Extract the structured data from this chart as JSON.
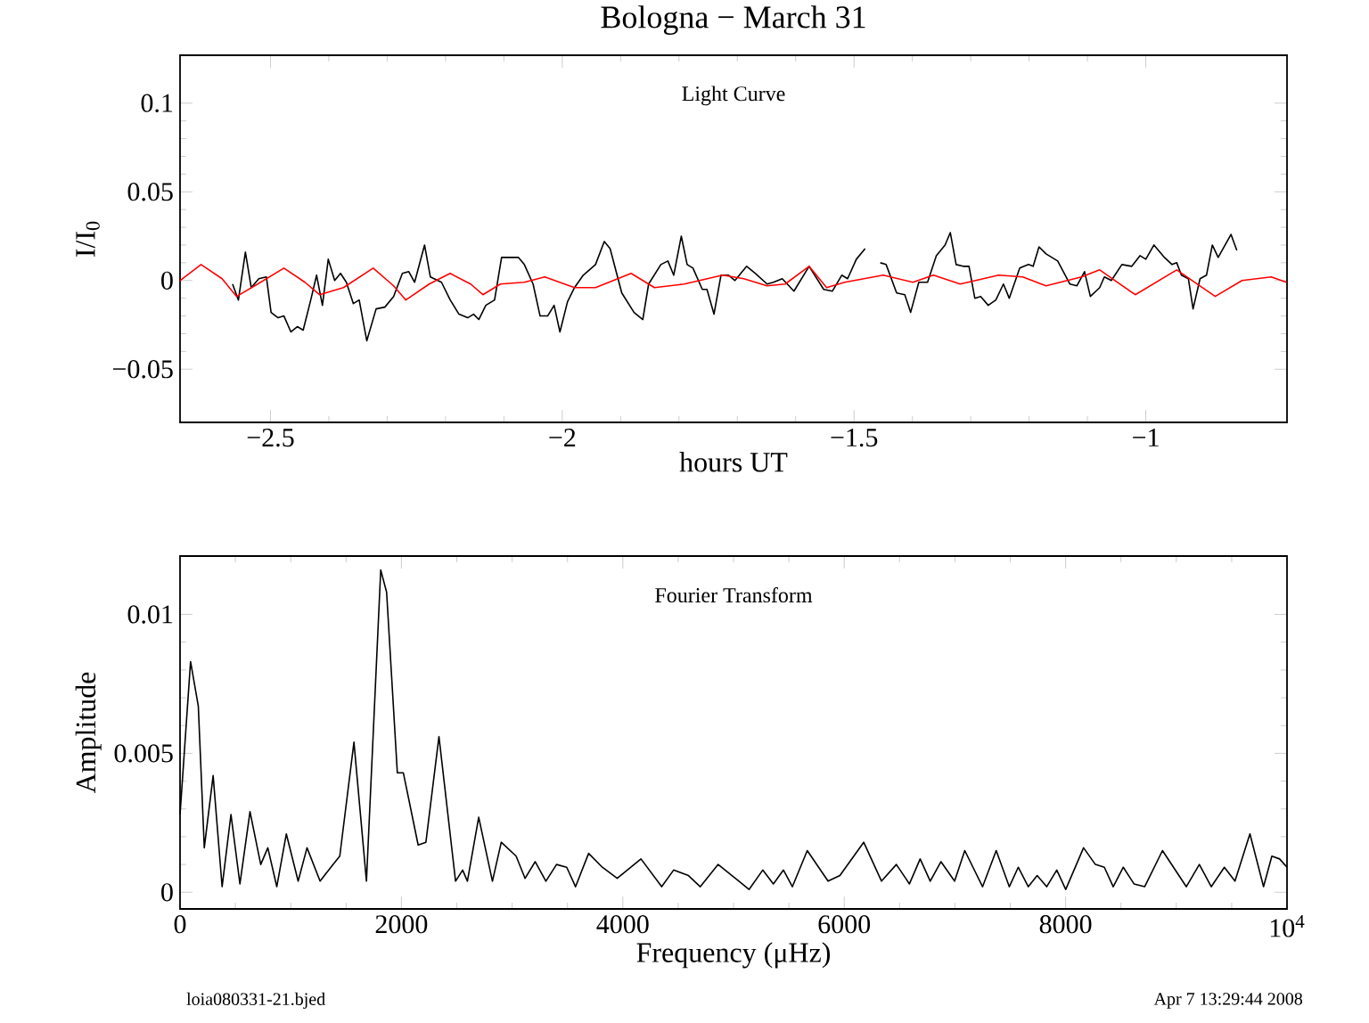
{
  "chart_data": [
    {
      "type": "line",
      "title": "Bologna − March 31",
      "xlabel": "hours UT",
      "ylabel": "I/I$_{0}$",
      "xlim": [
        -2.655,
        -0.758
      ],
      "ylim": [
        -0.08,
        0.127
      ],
      "xticks": [
        {
          "value": -2.5,
          "label": "−2.5"
        },
        {
          "value": -2,
          "label": "−2"
        },
        {
          "value": -1.5,
          "label": "−1.5"
        },
        {
          "value": -1,
          "label": "−1"
        }
      ],
      "yticks": [
        {
          "value": -0.05,
          "label": "−0.05"
        },
        0,
        0.05,
        0.1
      ],
      "annotations": [
        "Light Curve"
      ],
      "series": [
        {
          "color": "#000000",
          "x": [
            -2.565,
            -2.555,
            -2.543,
            -2.533,
            -2.52,
            -2.507,
            -2.499,
            -2.487,
            -2.477,
            -2.465,
            -2.454,
            -2.444,
            -2.431,
            -2.421,
            -2.411,
            -2.401,
            -2.39,
            -2.38,
            -2.37,
            -2.358,
            -2.348,
            -2.335,
            -2.319,
            -2.304,
            -2.289,
            -2.274,
            -2.263,
            -2.253,
            -2.236,
            -2.226,
            -2.207,
            -2.192,
            -2.177,
            -2.162,
            -2.152,
            -2.143,
            -2.131,
            -2.116,
            -2.104,
            -2.091,
            -2.075,
            -2.065,
            -2.05,
            -2.038,
            -2.025,
            -2.014,
            -2.004,
            -1.991,
            -1.979,
            -1.964,
            -1.943,
            -1.928,
            -1.918,
            -1.898,
            -1.877,
            -1.862,
            -1.852,
            -1.831,
            -1.819,
            -1.809,
            -1.796,
            -1.786,
            -1.776,
            -1.76,
            -1.752,
            -1.74,
            -1.728,
            -1.715,
            -1.704,
            -1.684,
            -1.669,
            -1.649,
            -1.638,
            -1.623,
            -1.603,
            -1.577,
            -1.552,
            -1.537,
            -1.521,
            -1.511,
            -1.496,
            -1.481,
            -1.468,
            -1.455,
            -1.445,
            -1.427,
            -1.413,
            -1.403,
            -1.389,
            -1.374,
            -1.359,
            -1.344,
            -1.335,
            -1.325,
            -1.313,
            -1.303,
            -1.293,
            -1.283,
            -1.27,
            -1.257,
            -1.244,
            -1.234,
            -1.216,
            -1.201,
            -1.193,
            -1.183,
            -1.171,
            -1.151,
            -1.13,
            -1.118,
            -1.105,
            -1.095,
            -1.079,
            -1.071,
            -1.059,
            -1.041,
            -1.024,
            -1.01,
            -1.0,
            -0.986,
            -0.968,
            -0.955,
            -0.947,
            -0.939,
            -0.927,
            -0.919,
            -0.907,
            -0.896,
            -0.886,
            -0.876,
            -0.854,
            -0.844
          ],
          "values": [
            -0.002,
            -0.011,
            0.016,
            -0.004,
            0.001,
            0.002,
            -0.018,
            -0.021,
            -0.02,
            -0.029,
            -0.026,
            -0.028,
            -0.011,
            0.003,
            -0.014,
            0.012,
            0.0,
            0.004,
            -0.001,
            -0.013,
            -0.011,
            -0.034,
            -0.016,
            -0.015,
            -0.009,
            0.004,
            0.005,
            -0.001,
            0.02,
            0.002,
            -0.001,
            -0.011,
            -0.019,
            -0.021,
            -0.019,
            -0.022,
            -0.014,
            -0.011,
            0.013,
            0.013,
            0.013,
            0.009,
            -0.002,
            -0.02,
            -0.02,
            -0.014,
            -0.029,
            -0.012,
            -0.004,
            0.003,
            0.009,
            0.022,
            0.018,
            -0.007,
            -0.018,
            -0.022,
            -0.002,
            0.009,
            0.011,
            0.003,
            0.025,
            0.009,
            0.007,
            -0.005,
            -0.005,
            -0.019,
            0.003,
            0.003,
            0.0,
            0.008,
            0.004,
            -0.002,
            -0.001,
            0.001,
            -0.006,
            0.008,
            -0.005,
            -0.006,
            0.003,
            0.001,
            0.012,
            0.018,
            null,
            0.01,
            0.009,
            -0.007,
            -0.008,
            -0.018,
            -0.001,
            -0.001,
            0.014,
            0.02,
            0.027,
            0.009,
            0.008,
            0.008,
            -0.01,
            -0.009,
            -0.014,
            -0.011,
            -0.002,
            -0.01,
            0.007,
            0.009,
            0.008,
            0.019,
            0.015,
            0.011,
            -0.002,
            -0.003,
            0.005,
            -0.009,
            -0.004,
            0.002,
            0.0,
            0.009,
            0.008,
            0.014,
            0.012,
            0.02,
            0.013,
            0.009,
            0.01,
            0.003,
            0.001,
            -0.016,
            0.001,
            0.003,
            0.02,
            0.013,
            0.026,
            0.017
          ]
        },
        {
          "color": "#ff0000",
          "x": [
            -2.655,
            -2.619,
            -2.583,
            -2.558,
            -2.522,
            -2.477,
            -2.441,
            -2.416,
            -2.375,
            -2.324,
            -2.289,
            -2.268,
            -2.228,
            -2.192,
            -2.157,
            -2.136,
            -2.106,
            -2.065,
            -2.03,
            -1.979,
            -1.943,
            -1.882,
            -1.842,
            -1.791,
            -1.725,
            -1.689,
            -1.649,
            -1.618,
            -1.577,
            -1.547,
            -1.516,
            -1.45,
            -1.399,
            -1.364,
            -1.318,
            -1.252,
            -1.211,
            -1.171,
            -1.11,
            -1.079,
            -1.018,
            -0.947,
            -0.881,
            -0.835,
            -0.785,
            -0.759
          ],
          "values": [
            0.0,
            0.009,
            0.001,
            -0.009,
            -0.002,
            0.007,
            -0.001,
            -0.008,
            -0.004,
            0.007,
            -0.003,
            -0.011,
            -0.002,
            0.004,
            -0.002,
            -0.008,
            -0.002,
            -0.001,
            0.002,
            -0.004,
            -0.004,
            0.004,
            -0.004,
            -0.002,
            0.003,
            0.001,
            -0.003,
            -0.002,
            0.008,
            -0.004,
            -0.001,
            0.003,
            -0.001,
            0.003,
            -0.002,
            0.003,
            0.002,
            -0.003,
            0.002,
            0.006,
            -0.008,
            0.006,
            -0.009,
            0.0,
            0.002,
            -0.001
          ]
        }
      ]
    },
    {
      "type": "line",
      "xlabel": "Frequency (μHz)",
      "ylabel": "Amplitude",
      "xlim": [
        0,
        10000
      ],
      "ylim": [
        -0.0006,
        0.0121
      ],
      "xticks": [
        0,
        2000,
        4000,
        6000,
        8000,
        {
          "value": 10000,
          "label": "10$^{4}$"
        }
      ],
      "yticks": [
        0,
        0.005,
        0.01
      ],
      "annotations": [
        "Fourier Transform",
        "loia080331-21.bjed",
        "Apr  7 13:29:44 2008"
      ],
      "series": [
        {
          "color": "#000000",
          "x": [
            0,
            95,
            165,
            219,
            299,
            380,
            460,
            541,
            632,
            729,
            793,
            874,
            960,
            1067,
            1147,
            1265,
            1383,
            1443,
            1571,
            1684,
            1813,
            1866,
            1963,
            2017,
            2151,
            2221,
            2339,
            2489,
            2553,
            2596,
            2698,
            2822,
            2902,
            3036,
            3117,
            3208,
            3305,
            3401,
            3493,
            3573,
            3691,
            3815,
            3949,
            4164,
            4351,
            4459,
            4593,
            4700,
            4861,
            5049,
            5140,
            5264,
            5360,
            5451,
            5532,
            5666,
            5854,
            5961,
            6176,
            6337,
            6471,
            6589,
            6686,
            6777,
            6874,
            6997,
            7089,
            7250,
            7373,
            7491,
            7572,
            7663,
            7743,
            7829,
            7920,
            8001,
            8162,
            8269,
            8350,
            8430,
            8521,
            8618,
            8714,
            8875,
            9090,
            9208,
            9316,
            9434,
            9530,
            9665,
            9788,
            9863,
            9933,
            10000
          ],
          "values": [
            0.0028,
            0.0083,
            0.0067,
            0.0016,
            0.0042,
            0.0002,
            0.0028,
            0.0003,
            0.0029,
            0.001,
            0.0016,
            0.0002,
            0.0021,
            0.0004,
            0.0016,
            0.0004,
            0.001,
            0.0013,
            0.0054,
            0.0004,
            0.0116,
            0.0108,
            0.0043,
            0.0043,
            0.0017,
            0.0018,
            0.0056,
            0.0004,
            0.0008,
            0.0004,
            0.0027,
            0.0004,
            0.0018,
            0.0013,
            0.0005,
            0.0011,
            0.0004,
            0.001,
            0.0009,
            0.0002,
            0.0014,
            0.0009,
            0.0005,
            0.0012,
            0.0002,
            0.0008,
            0.0006,
            0.0002,
            0.001,
            0.0004,
            0.0001,
            0.0008,
            0.0003,
            0.0008,
            0.0002,
            0.0015,
            0.0004,
            0.0006,
            0.0018,
            0.0004,
            0.001,
            0.0003,
            0.0012,
            0.0004,
            0.0011,
            0.0004,
            0.0015,
            0.0002,
            0.0015,
            0.0002,
            0.0009,
            0.0002,
            0.0006,
            0.0002,
            0.0008,
            0.0001,
            0.0016,
            0.001,
            0.0009,
            0.0002,
            0.0009,
            0.0003,
            0.0002,
            0.0015,
            0.0002,
            0.001,
            0.0002,
            0.0009,
            0.0004,
            0.0021,
            0.0002,
            0.0013,
            0.0012,
            0.0009
          ]
        }
      ]
    }
  ]
}
